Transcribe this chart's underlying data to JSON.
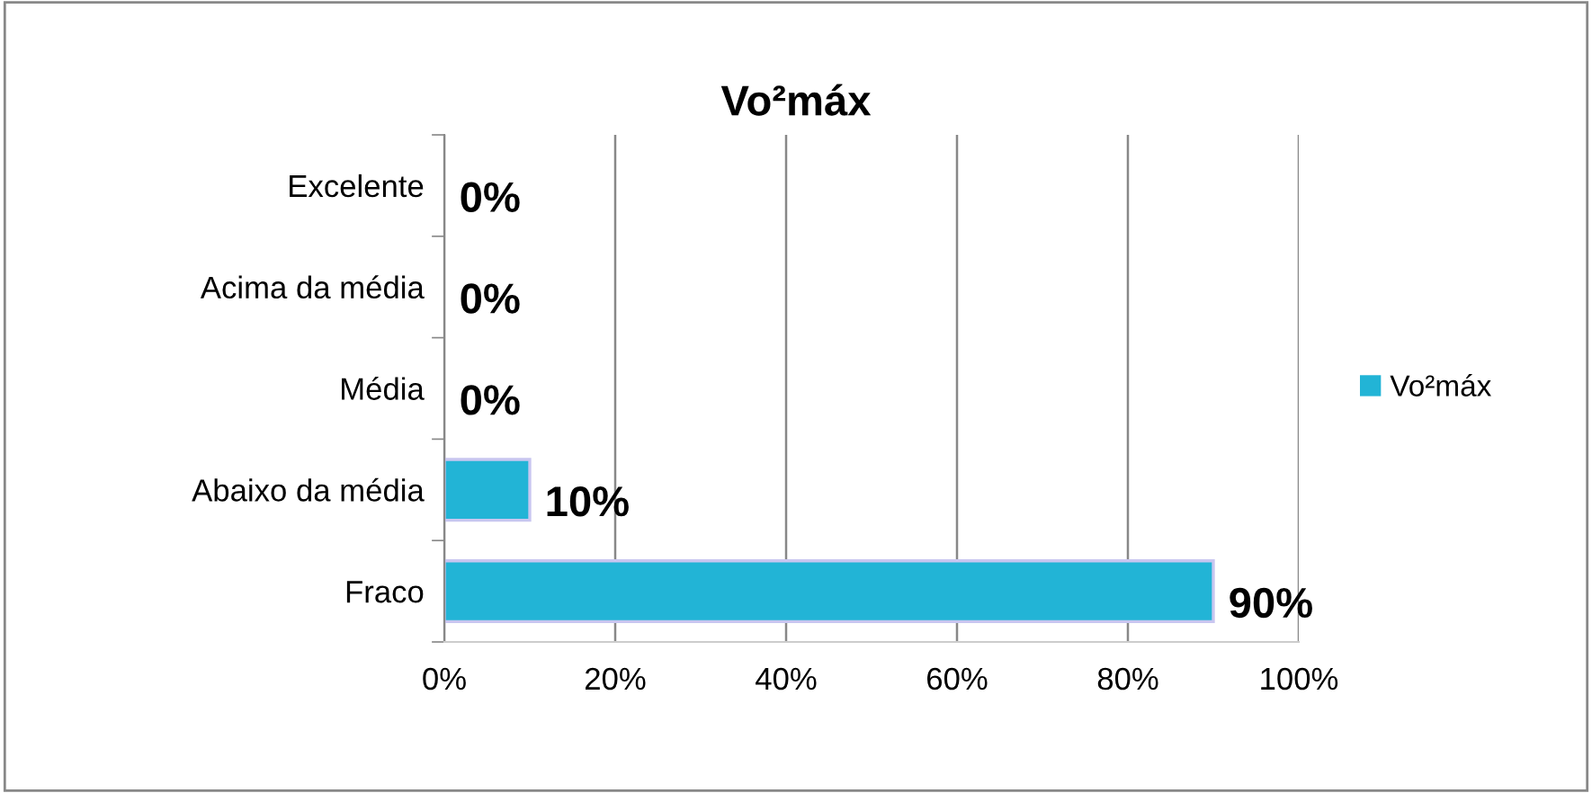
{
  "chart_data": {
    "type": "bar",
    "orientation": "horizontal",
    "title": "Vo²máx",
    "categories": [
      "Excelente",
      "Acima da média",
      "Média",
      "Abaixo da média",
      "Fraco"
    ],
    "series": [
      {
        "name": "Vo²máx",
        "color": "#22b4d6",
        "values": [
          0,
          0,
          0,
          10,
          90
        ],
        "value_labels": [
          "0%",
          "0%",
          "0%",
          "10%",
          "90%"
        ]
      }
    ],
    "xlim": [
      0,
      100
    ],
    "xticks": [
      {
        "value": 0,
        "label": "0%"
      },
      {
        "value": 20,
        "label": "20%"
      },
      {
        "value": 40,
        "label": "40%"
      },
      {
        "value": 60,
        "label": "60%"
      },
      {
        "value": 80,
        "label": "80%"
      },
      {
        "value": 100,
        "label": "100%"
      }
    ],
    "grid": "x",
    "legend": "right"
  }
}
